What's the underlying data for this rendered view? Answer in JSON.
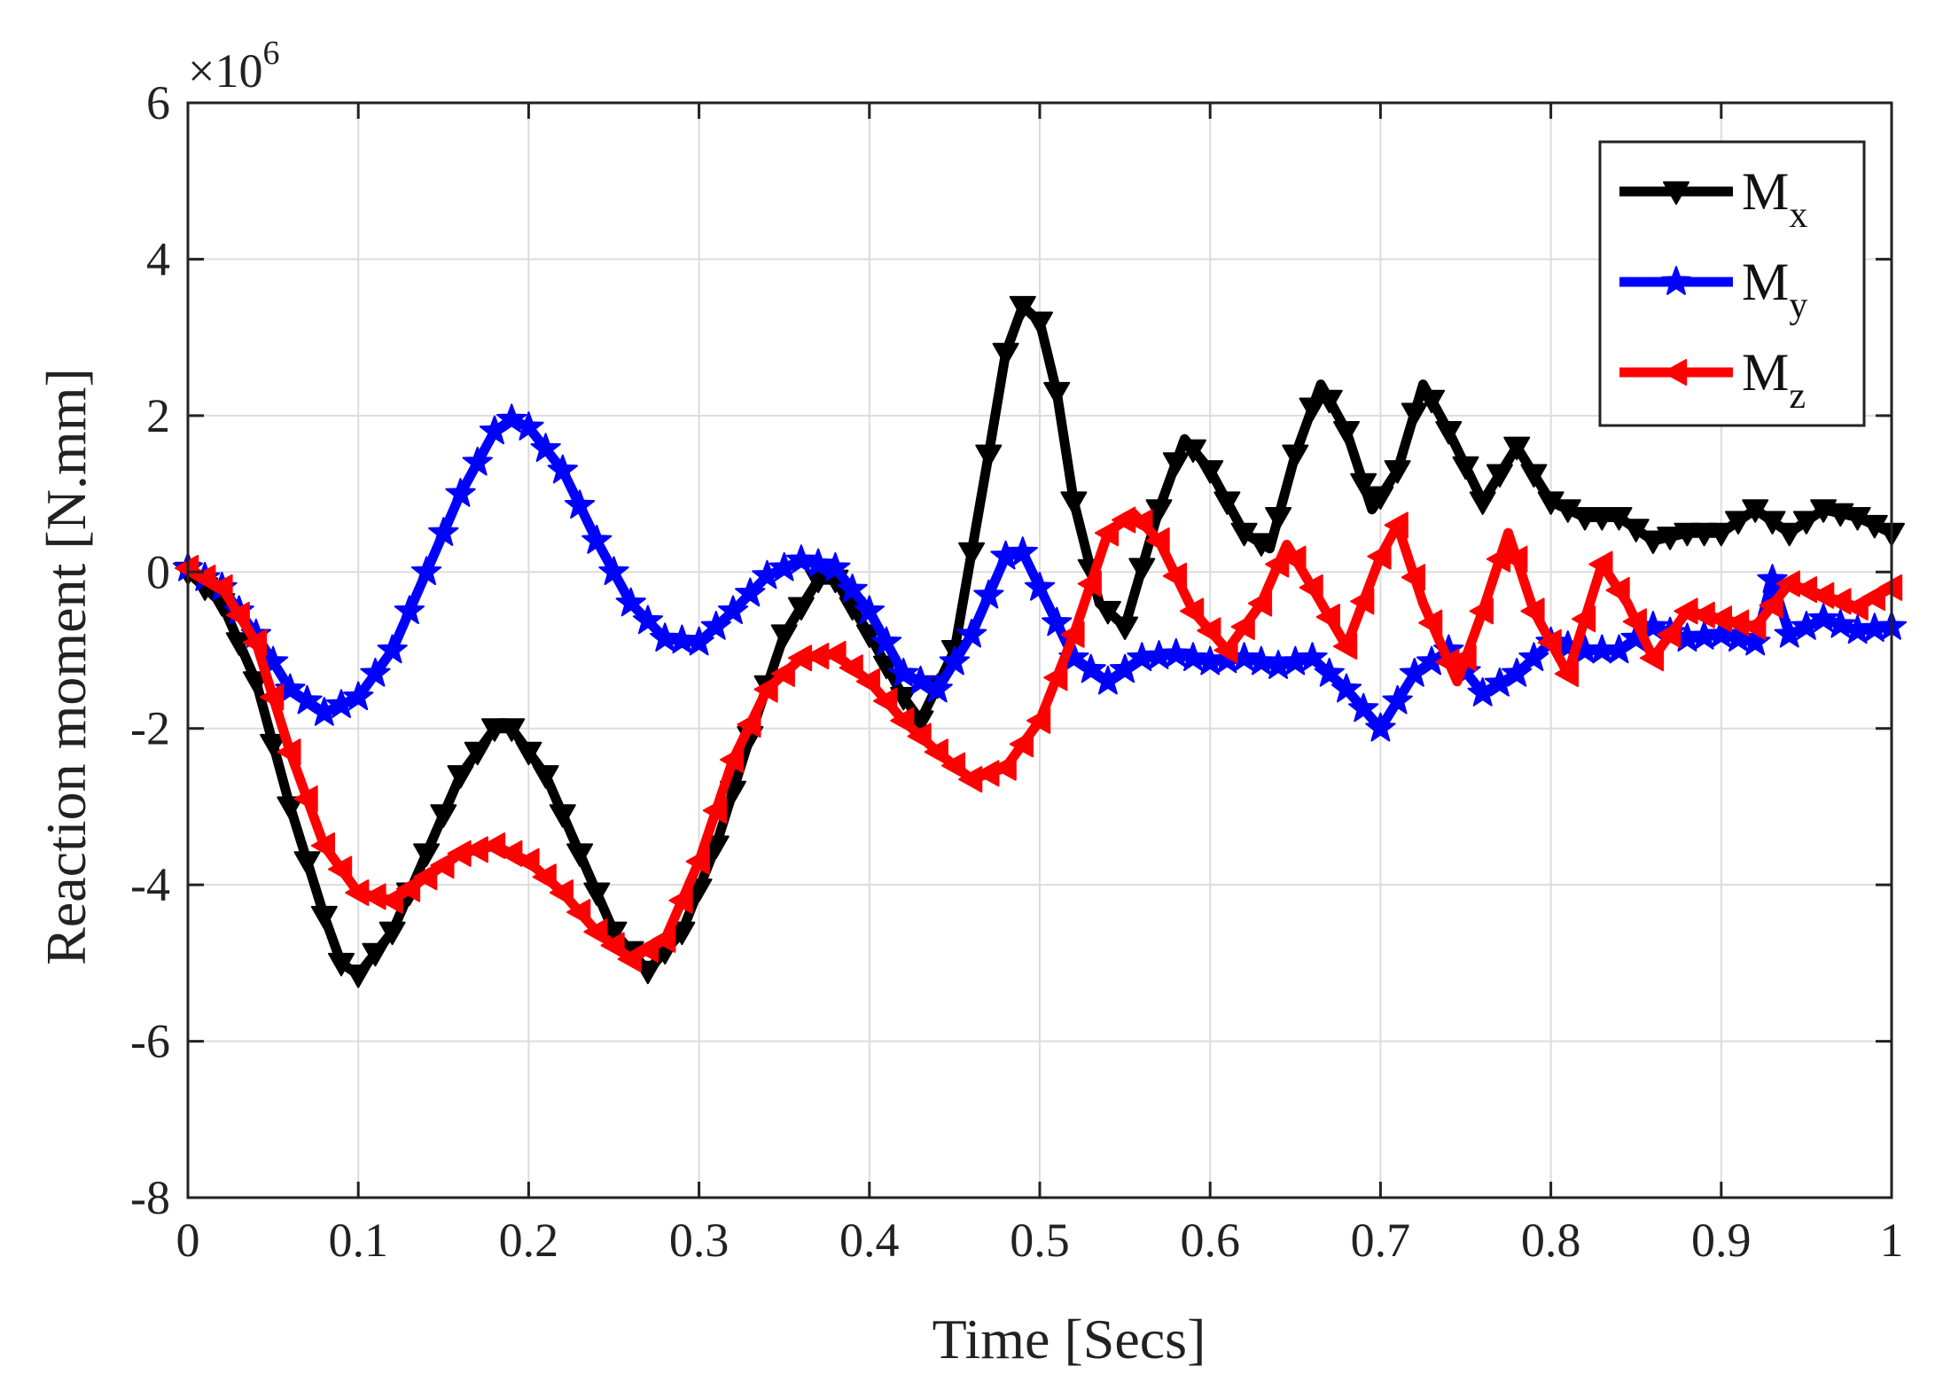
{
  "chart_data": {
    "type": "line",
    "title": "",
    "xlabel": "Time [Secs]",
    "ylabel": "Reaction moment [N.mm]",
    "y_multiplier": {
      "base": "×10",
      "exponent": "6"
    },
    "xlim": [
      0,
      1
    ],
    "ylim": [
      -8,
      6
    ],
    "grid": true,
    "legend_position": "top-right",
    "x_ticks": [
      0,
      0.1,
      0.2,
      0.3,
      0.4,
      0.5,
      0.6,
      0.7,
      0.8,
      0.9,
      1
    ],
    "x_tick_labels": [
      "0",
      "0.1",
      "0.2",
      "0.3",
      "0.4",
      "0.5",
      "0.6",
      "0.7",
      "0.8",
      "0.9",
      "1"
    ],
    "y_ticks": [
      -8,
      -6,
      -4,
      -2,
      0,
      2,
      4,
      6
    ],
    "y_tick_labels": [
      "-8",
      "-6",
      "-4",
      "-2",
      "0",
      "2",
      "4",
      "6"
    ],
    "series": [
      {
        "name": "Mx",
        "label_main": "M",
        "label_sub": "x",
        "color": "#000000",
        "marker": "triangle-down",
        "points": [
          [
            0,
            0
          ],
          [
            0.02,
            -0.4
          ],
          [
            0.04,
            -1.4
          ],
          [
            0.06,
            -3.0
          ],
          [
            0.08,
            -4.4
          ],
          [
            0.09,
            -5.0
          ],
          [
            0.1,
            -5.15
          ],
          [
            0.12,
            -4.6
          ],
          [
            0.14,
            -3.6
          ],
          [
            0.16,
            -2.6
          ],
          [
            0.18,
            -2.0
          ],
          [
            0.19,
            -2.0
          ],
          [
            0.21,
            -2.6
          ],
          [
            0.23,
            -3.6
          ],
          [
            0.25,
            -4.6
          ],
          [
            0.27,
            -5.1
          ],
          [
            0.29,
            -4.6
          ],
          [
            0.31,
            -3.5
          ],
          [
            0.33,
            -2.1
          ],
          [
            0.35,
            -0.8
          ],
          [
            0.37,
            -0.1
          ],
          [
            0.38,
            -0.1
          ],
          [
            0.4,
            -0.8
          ],
          [
            0.42,
            -1.6
          ],
          [
            0.43,
            -1.9
          ],
          [
            0.45,
            -1.0
          ],
          [
            0.47,
            1.5
          ],
          [
            0.48,
            2.8
          ],
          [
            0.49,
            3.4
          ],
          [
            0.5,
            3.2
          ],
          [
            0.51,
            2.3
          ],
          [
            0.52,
            0.9
          ],
          [
            0.535,
            -0.4
          ],
          [
            0.55,
            -0.7
          ],
          [
            0.57,
            0.8
          ],
          [
            0.585,
            1.7
          ],
          [
            0.6,
            1.3
          ],
          [
            0.62,
            0.5
          ],
          [
            0.635,
            0.3
          ],
          [
            0.65,
            1.5
          ],
          [
            0.665,
            2.4
          ],
          [
            0.68,
            1.8
          ],
          [
            0.695,
            0.8
          ],
          [
            0.71,
            1.3
          ],
          [
            0.725,
            2.4
          ],
          [
            0.74,
            1.8
          ],
          [
            0.76,
            0.9
          ],
          [
            0.78,
            1.6
          ],
          [
            0.8,
            0.9
          ],
          [
            0.82,
            0.7
          ],
          [
            0.84,
            0.7
          ],
          [
            0.86,
            0.4
          ],
          [
            0.88,
            0.5
          ],
          [
            0.9,
            0.5
          ],
          [
            0.92,
            0.8
          ],
          [
            0.94,
            0.5
          ],
          [
            0.96,
            0.8
          ],
          [
            0.98,
            0.7
          ],
          [
            1.0,
            0.5
          ]
        ]
      },
      {
        "name": "My",
        "label_main": "M",
        "label_sub": "y",
        "color": "#0000ff",
        "marker": "star",
        "points": [
          [
            0,
            0.05
          ],
          [
            0.02,
            -0.2
          ],
          [
            0.04,
            -0.8
          ],
          [
            0.06,
            -1.5
          ],
          [
            0.08,
            -1.8
          ],
          [
            0.1,
            -1.6
          ],
          [
            0.12,
            -1.0
          ],
          [
            0.14,
            0.0
          ],
          [
            0.16,
            1.0
          ],
          [
            0.18,
            1.8
          ],
          [
            0.19,
            1.95
          ],
          [
            0.2,
            1.85
          ],
          [
            0.22,
            1.3
          ],
          [
            0.24,
            0.4
          ],
          [
            0.26,
            -0.4
          ],
          [
            0.28,
            -0.85
          ],
          [
            0.3,
            -0.9
          ],
          [
            0.32,
            -0.5
          ],
          [
            0.34,
            -0.05
          ],
          [
            0.36,
            0.15
          ],
          [
            0.38,
            0.05
          ],
          [
            0.4,
            -0.5
          ],
          [
            0.42,
            -1.3
          ],
          [
            0.44,
            -1.5
          ],
          [
            0.46,
            -0.8
          ],
          [
            0.48,
            0.2
          ],
          [
            0.49,
            0.25
          ],
          [
            0.5,
            -0.2
          ],
          [
            0.52,
            -1.1
          ],
          [
            0.54,
            -1.4
          ],
          [
            0.56,
            -1.1
          ],
          [
            0.58,
            -1.05
          ],
          [
            0.6,
            -1.15
          ],
          [
            0.62,
            -1.1
          ],
          [
            0.64,
            -1.2
          ],
          [
            0.66,
            -1.1
          ],
          [
            0.68,
            -1.5
          ],
          [
            0.7,
            -2.0
          ],
          [
            0.72,
            -1.3
          ],
          [
            0.74,
            -1.0
          ],
          [
            0.76,
            -1.55
          ],
          [
            0.78,
            -1.3
          ],
          [
            0.8,
            -0.9
          ],
          [
            0.82,
            -1.0
          ],
          [
            0.84,
            -1.0
          ],
          [
            0.86,
            -0.7
          ],
          [
            0.88,
            -0.85
          ],
          [
            0.9,
            -0.8
          ],
          [
            0.92,
            -0.9
          ],
          [
            0.93,
            -0.1
          ],
          [
            0.94,
            -0.8
          ],
          [
            0.96,
            -0.6
          ],
          [
            0.98,
            -0.75
          ],
          [
            1.0,
            -0.7
          ]
        ]
      },
      {
        "name": "Mz",
        "label_main": "M",
        "label_sub": "z",
        "color": "#ff0000",
        "marker": "triangle-left",
        "points": [
          [
            0,
            0.05
          ],
          [
            0.02,
            -0.2
          ],
          [
            0.04,
            -0.9
          ],
          [
            0.06,
            -2.3
          ],
          [
            0.08,
            -3.5
          ],
          [
            0.1,
            -4.1
          ],
          [
            0.12,
            -4.2
          ],
          [
            0.14,
            -3.9
          ],
          [
            0.16,
            -3.6
          ],
          [
            0.18,
            -3.5
          ],
          [
            0.2,
            -3.7
          ],
          [
            0.22,
            -4.1
          ],
          [
            0.24,
            -4.6
          ],
          [
            0.26,
            -4.95
          ],
          [
            0.28,
            -4.7
          ],
          [
            0.3,
            -3.7
          ],
          [
            0.32,
            -2.4
          ],
          [
            0.34,
            -1.5
          ],
          [
            0.36,
            -1.1
          ],
          [
            0.38,
            -1.05
          ],
          [
            0.4,
            -1.4
          ],
          [
            0.42,
            -1.9
          ],
          [
            0.44,
            -2.3
          ],
          [
            0.46,
            -2.65
          ],
          [
            0.48,
            -2.5
          ],
          [
            0.5,
            -1.9
          ],
          [
            0.52,
            -0.8
          ],
          [
            0.54,
            0.5
          ],
          [
            0.555,
            0.75
          ],
          [
            0.57,
            0.4
          ],
          [
            0.59,
            -0.5
          ],
          [
            0.61,
            -1.0
          ],
          [
            0.63,
            -0.4
          ],
          [
            0.645,
            0.35
          ],
          [
            0.66,
            -0.2
          ],
          [
            0.68,
            -0.95
          ],
          [
            0.7,
            0.2
          ],
          [
            0.71,
            0.6
          ],
          [
            0.725,
            -0.4
          ],
          [
            0.745,
            -1.4
          ],
          [
            0.76,
            -0.5
          ],
          [
            0.775,
            0.5
          ],
          [
            0.79,
            -0.5
          ],
          [
            0.81,
            -1.3
          ],
          [
            0.83,
            0.1
          ],
          [
            0.845,
            -0.4
          ],
          [
            0.86,
            -1.1
          ],
          [
            0.88,
            -0.5
          ],
          [
            0.9,
            -0.6
          ],
          [
            0.92,
            -0.7
          ],
          [
            0.94,
            -0.15
          ],
          [
            0.96,
            -0.3
          ],
          [
            0.98,
            -0.45
          ],
          [
            1.0,
            -0.2
          ]
        ]
      }
    ]
  }
}
